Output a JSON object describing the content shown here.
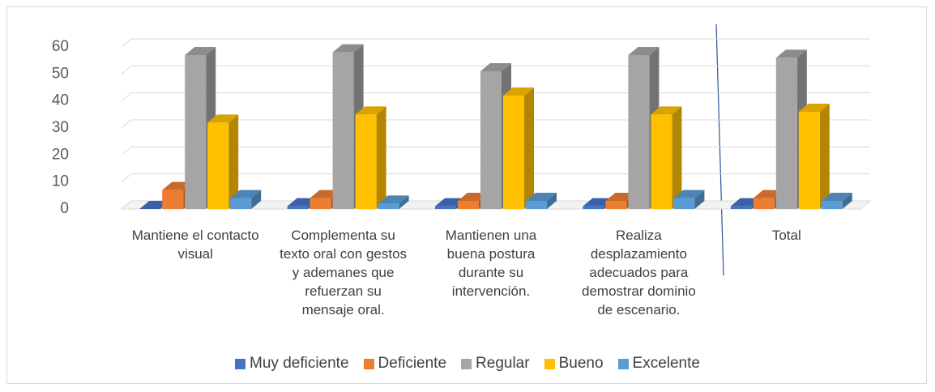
{
  "chart_data": {
    "type": "bar3d",
    "categories": [
      "Mantiene el contacto visual",
      "Complementa su texto oral con gestos y ademanes que refuerzan su mensaje oral.",
      "Mantienen una buena postura durante su intervención.",
      "Realiza desplazamiento adecuados para demostrar dominio de escenario.",
      "Total"
    ],
    "series": [
      {
        "name": "Muy deficiente",
        "color": "#4472c4",
        "values": [
          0,
          1,
          1,
          1,
          1
        ]
      },
      {
        "name": "Deficiente",
        "color": "#ed7d31",
        "values": [
          7,
          4,
          3,
          3,
          4
        ]
      },
      {
        "name": "Regular",
        "color": "#a5a5a5",
        "values": [
          57,
          58,
          51,
          57,
          56
        ]
      },
      {
        "name": "Bueno",
        "color": "#ffc000",
        "values": [
          32,
          35,
          42,
          35,
          36
        ]
      },
      {
        "name": "Excelente",
        "color": "#5b9bd5",
        "values": [
          4,
          2,
          3,
          4,
          3
        ]
      }
    ],
    "ylim": [
      0,
      60
    ],
    "yticks": [
      0,
      10,
      20,
      30,
      40,
      50,
      60
    ],
    "grid": true,
    "legend": "bottom"
  }
}
